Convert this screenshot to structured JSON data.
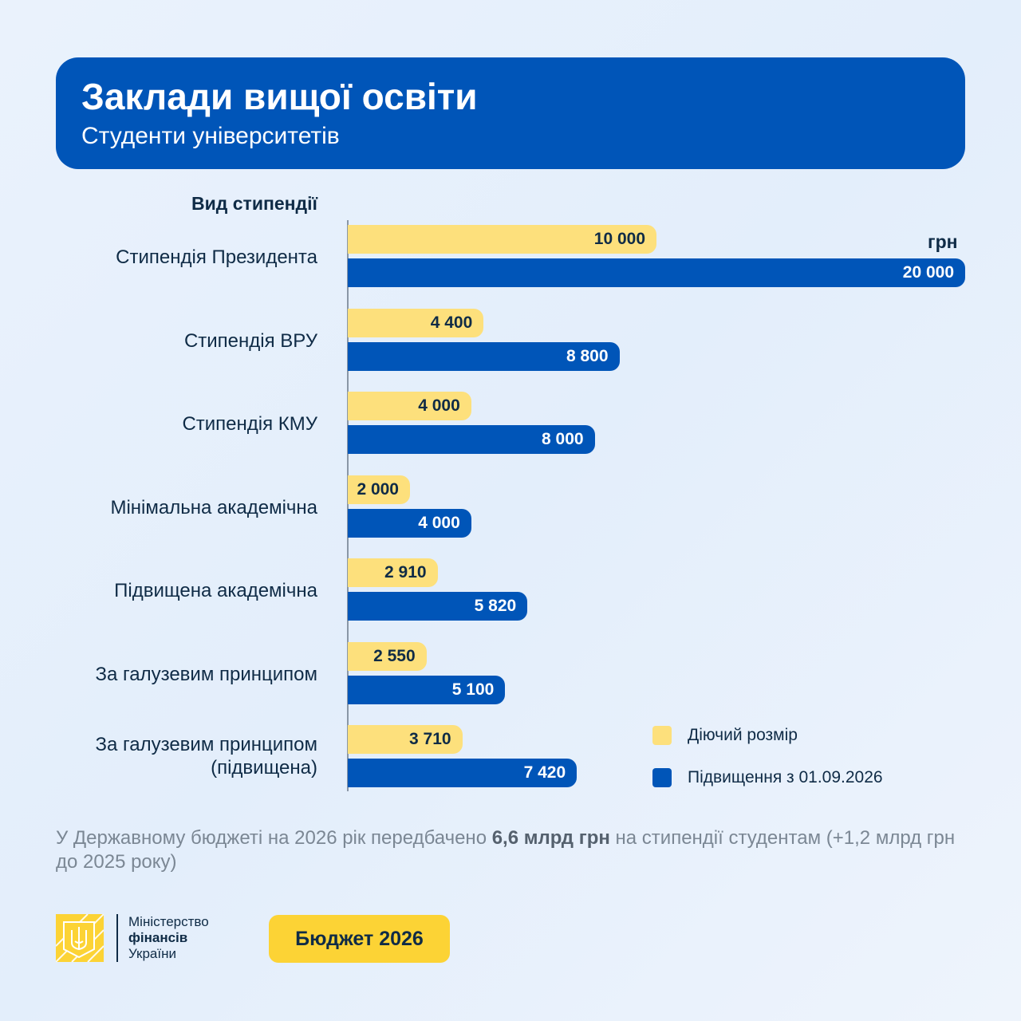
{
  "header": {
    "title": "Заклади вищої освіти",
    "subtitle": "Студенти університетів"
  },
  "chart_data": {
    "type": "bar",
    "orientation": "horizontal",
    "category_header": "Вид стипендії",
    "unit": "грн",
    "categories": [
      "Стипендія Президента",
      "Стипендія ВРУ",
      "Стипендія КМУ",
      "Мінімальна академічна",
      "Підвищена академічна",
      "За галузевим принципом",
      "За галузевим принципом (підвищена)"
    ],
    "series": [
      {
        "name": "Діючий розмір",
        "color": "#fde07c",
        "values": [
          10000,
          4400,
          4000,
          2000,
          2910,
          2550,
          3710
        ],
        "labels": [
          "10 000",
          "4 400",
          "4 000",
          "2 000",
          "2 910",
          "2 550",
          "3 710"
        ]
      },
      {
        "name": "Підвищення з 01.09.2026",
        "color": "#0055b8",
        "values": [
          20000,
          8800,
          8000,
          4000,
          5820,
          5100,
          7420
        ],
        "labels": [
          "20 000",
          "8 800",
          "8 000",
          "4 000",
          "5 820",
          "5 100",
          "7 420"
        ]
      }
    ],
    "xlim": [
      0,
      20000
    ],
    "grid": false,
    "legend_placement": "bottom-right"
  },
  "note": {
    "before": "У Державному бюджеті на 2026 рік передбачено ",
    "bold": "6,6 млрд грн",
    "after": " на стипендії студентам (+1,2 млрд грн до 2025 року)"
  },
  "footer": {
    "ministry_line1": "Міністерство",
    "ministry_line2": "фінансів",
    "ministry_line3": "України",
    "budget_badge": "Бюджет 2026",
    "emblem_icon": "trident-icon"
  }
}
